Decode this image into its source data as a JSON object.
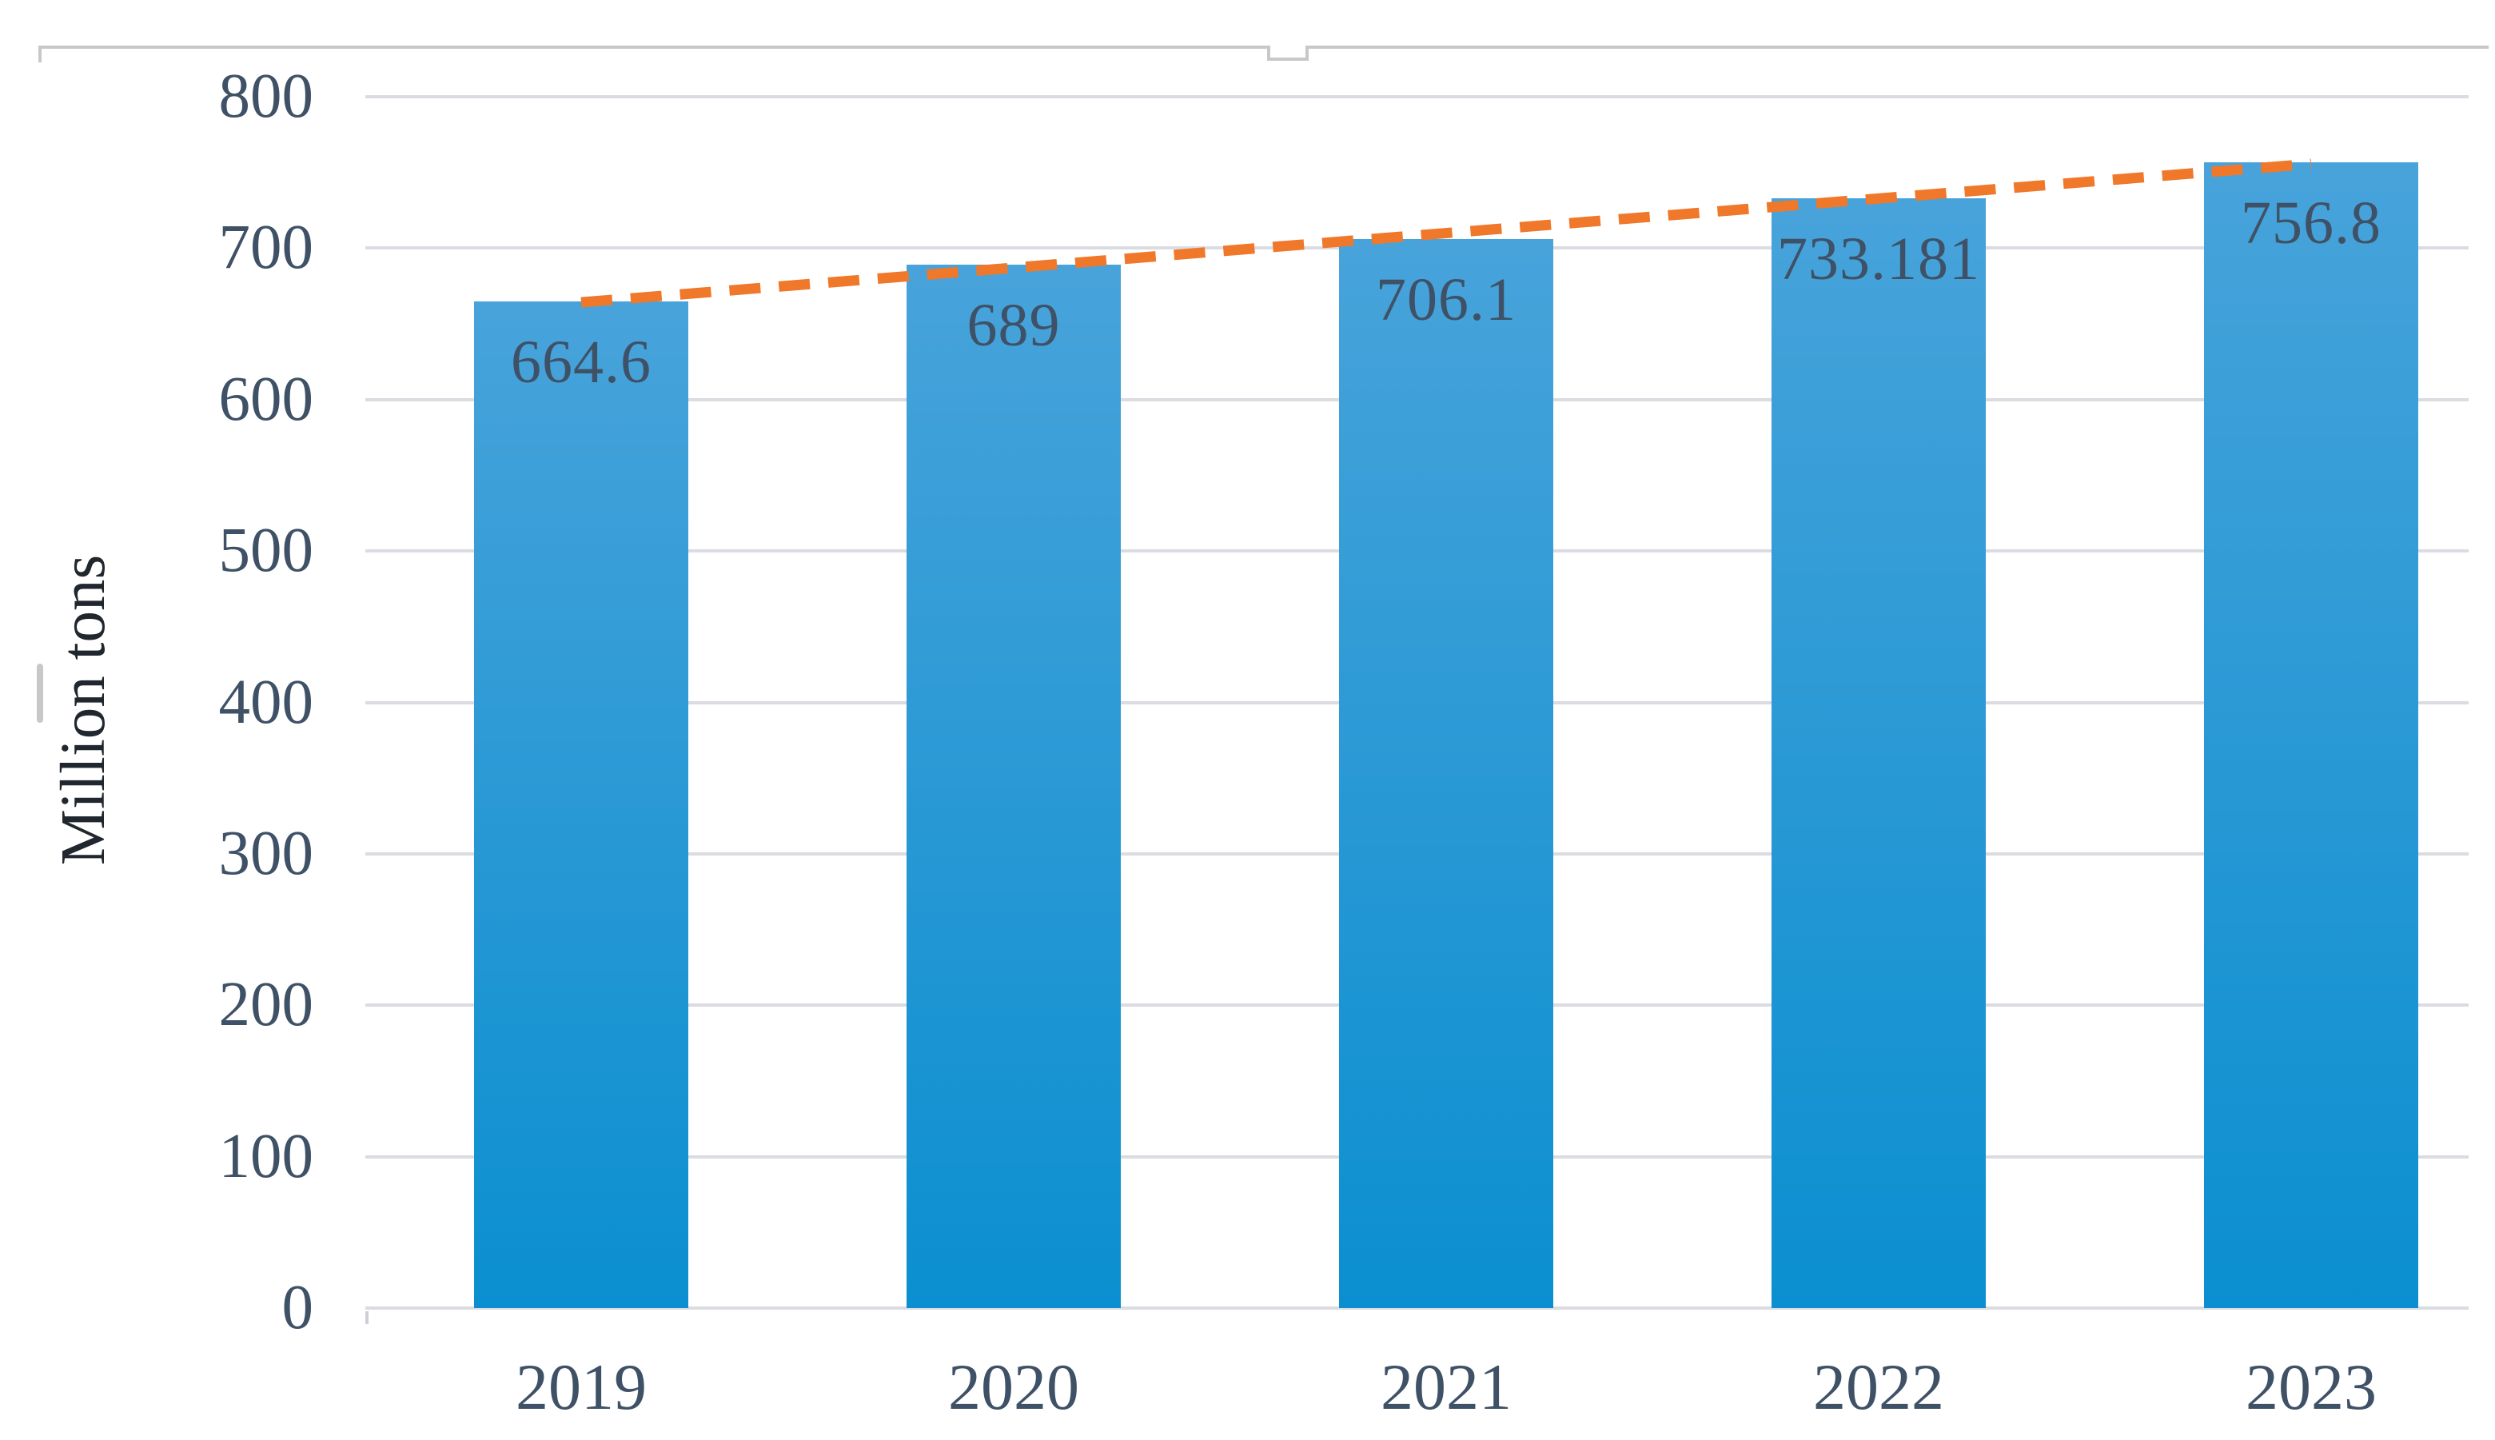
{
  "figure": {
    "ylabel": "Million tons"
  },
  "chart_data": {
    "type": "bar",
    "title": "",
    "categories": [
      "2019",
      "2020",
      "2021",
      "2022",
      "2023"
    ],
    "values": [
      664.6,
      689,
      706.1,
      733.181,
      756.8
    ],
    "data_labels": [
      "664.6",
      "689",
      "706.1",
      "733.181",
      "756.8"
    ],
    "xlabel": "",
    "ylabel": "Million tons",
    "ylim": [
      0,
      800
    ],
    "yticks": [
      0,
      100,
      200,
      300,
      400,
      500,
      600,
      700,
      800
    ],
    "grid": true,
    "legend": false,
    "bar_color_top": "#48A3DA",
    "bar_color_bottom": "#0B8FD0",
    "trendline": {
      "type": "linear",
      "style": "dashed",
      "color": "#F0782B"
    },
    "gridline_color": "#DADCE2",
    "axis_text_color": "#3F5166",
    "data_label_color": "#3F5166",
    "ylabel_color": "#21272E",
    "border_color": "#C7C8CA"
  }
}
